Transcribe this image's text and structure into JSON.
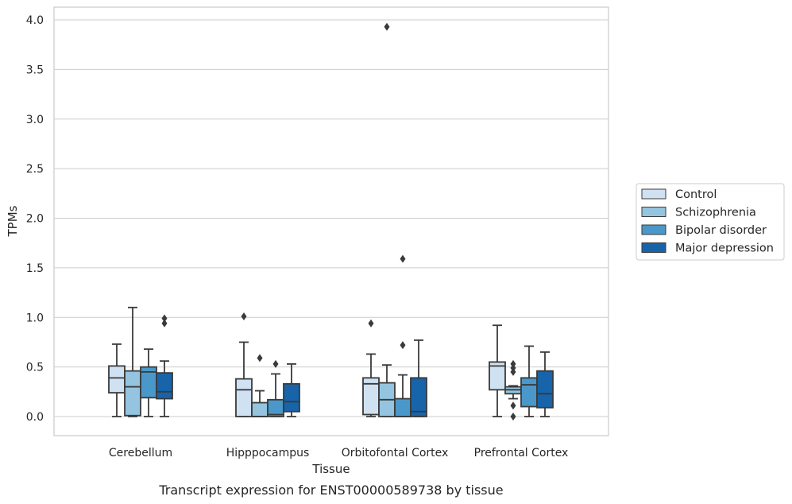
{
  "chart_data": {
    "type": "box",
    "title": "",
    "caption": "Transcript expression for ENST00000589738 by tissue",
    "xlabel": "Tissue",
    "ylabel": "TPMs",
    "ylim": [
      -0.19,
      4.13
    ],
    "yticks": [
      0.0,
      0.5,
      1.0,
      1.5,
      2.0,
      2.5,
      3.0,
      3.5,
      4.0
    ],
    "ytick_labels": [
      "0.0",
      "0.5",
      "1.0",
      "1.5",
      "2.0",
      "2.5",
      "3.0",
      "3.5",
      "4.0"
    ],
    "grid": "horizontal",
    "legend_position": "right",
    "categories": [
      "Cerebellum",
      "Hipppocampus",
      "Orbitofontal Cortex",
      "Prefrontal Cortex"
    ],
    "series": [
      {
        "name": "Control",
        "color": "#d0e1f2",
        "boxes": [
          {
            "whislo": 0.0,
            "q1": 0.24,
            "med": 0.39,
            "q3": 0.51,
            "whishi": 0.73,
            "fliers": []
          },
          {
            "whislo": 0.0,
            "q1": 0.0,
            "med": 0.27,
            "q3": 0.38,
            "whishi": 0.75,
            "fliers": [
              1.01
            ]
          },
          {
            "whislo": 0.0,
            "q1": 0.02,
            "med": 0.33,
            "q3": 0.39,
            "whishi": 0.63,
            "fliers": [
              0.94
            ]
          },
          {
            "whislo": 0.0,
            "q1": 0.27,
            "med": 0.51,
            "q3": 0.55,
            "whishi": 0.92,
            "fliers": []
          }
        ]
      },
      {
        "name": "Schizophrenia",
        "color": "#94c4df",
        "boxes": [
          {
            "whislo": 0.0,
            "q1": 0.01,
            "med": 0.3,
            "q3": 0.46,
            "whishi": 1.1,
            "fliers": []
          },
          {
            "whislo": 0.0,
            "q1": 0.0,
            "med": 0.0,
            "q3": 0.14,
            "whishi": 0.26,
            "fliers": [
              0.59
            ]
          },
          {
            "whislo": 0.0,
            "q1": 0.0,
            "med": 0.17,
            "q3": 0.34,
            "whishi": 0.52,
            "fliers": [
              3.93
            ]
          },
          {
            "whislo": 0.18,
            "q1": 0.23,
            "med": 0.27,
            "q3": 0.3,
            "whishi": 0.31,
            "fliers": [
              0.53,
              0.49,
              0.45,
              0.11,
              0.0
            ]
          }
        ]
      },
      {
        "name": "Bipolar disorder",
        "color": "#4a98c9",
        "boxes": [
          {
            "whislo": 0.0,
            "q1": 0.19,
            "med": 0.45,
            "q3": 0.5,
            "whishi": 0.68,
            "fliers": []
          },
          {
            "whislo": 0.0,
            "q1": 0.0,
            "med": 0.02,
            "q3": 0.17,
            "whishi": 0.43,
            "fliers": [
              0.53
            ]
          },
          {
            "whislo": 0.0,
            "q1": 0.0,
            "med": 0.0,
            "q3": 0.18,
            "whishi": 0.42,
            "fliers": [
              1.59,
              0.72
            ]
          },
          {
            "whislo": 0.0,
            "q1": 0.1,
            "med": 0.32,
            "q3": 0.39,
            "whishi": 0.71,
            "fliers": []
          }
        ]
      },
      {
        "name": "Major depression",
        "color": "#1764ab",
        "boxes": [
          {
            "whislo": 0.0,
            "q1": 0.18,
            "med": 0.25,
            "q3": 0.44,
            "whishi": 0.56,
            "fliers": [
              0.99,
              0.94
            ]
          },
          {
            "whislo": 0.0,
            "q1": 0.05,
            "med": 0.15,
            "q3": 0.33,
            "whishi": 0.53,
            "fliers": []
          },
          {
            "whislo": 0.0,
            "q1": 0.0,
            "med": 0.05,
            "q3": 0.39,
            "whishi": 0.77,
            "fliers": []
          },
          {
            "whislo": 0.0,
            "q1": 0.09,
            "med": 0.23,
            "q3": 0.46,
            "whishi": 0.65,
            "fliers": []
          }
        ]
      }
    ]
  }
}
